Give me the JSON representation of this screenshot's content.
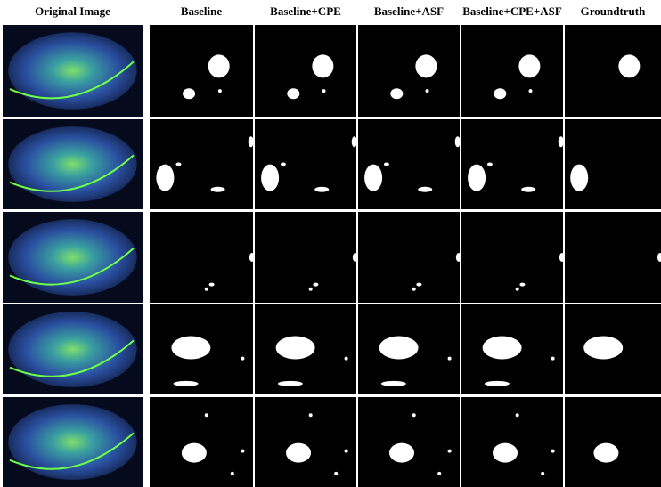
{
  "figure": {
    "columns": [
      "Original Image",
      "Baseline",
      "Baseline+CPE",
      "Baseline+ASF",
      "Baseline+CPE+ASF",
      "Groundtruth"
    ]
  }
}
